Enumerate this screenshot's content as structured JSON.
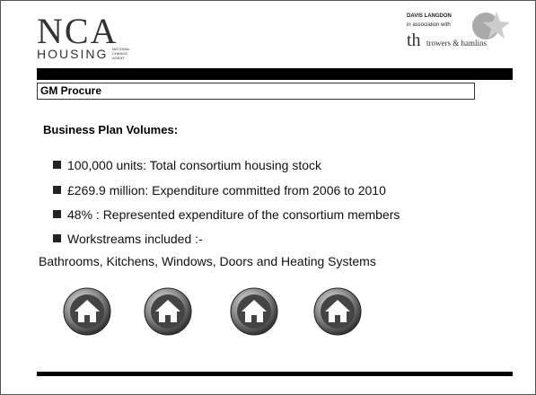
{
  "header": {
    "logo": {
      "main": "NCA",
      "sub": "HOUSING",
      "tag": [
        "NATIONAL",
        "CHANGE",
        "AGENT"
      ]
    },
    "partner": {
      "name": "DAVIS LANGDON",
      "note": "in association with",
      "mark": "th",
      "firm": "trowers & hamlins"
    }
  },
  "section": "GM Procure",
  "heading": "Business Plan Volumes:",
  "bullets": [
    "100,000 units:  Total consortium housing stock",
    "£269.9 million: Expenditure committed from 2006 to 2010",
    "48% : Represented expenditure of the consortium members",
    "Workstreams included :-"
  ],
  "detail": "Bathrooms, Kitchens, Windows, Doors and Heating Systems"
}
